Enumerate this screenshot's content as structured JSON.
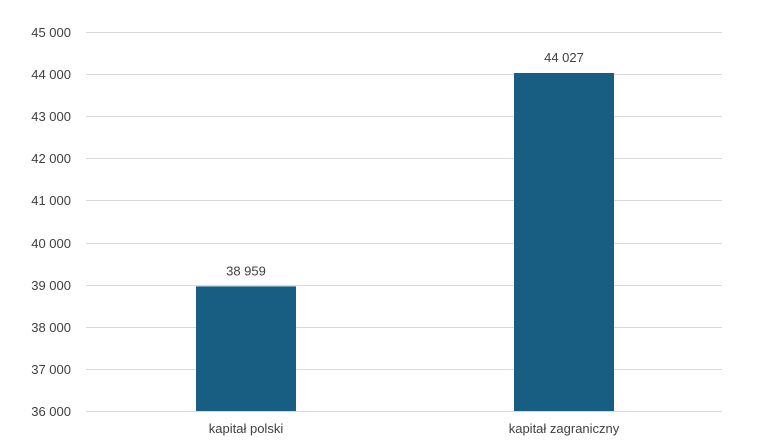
{
  "chart_data": {
    "type": "bar",
    "categories": [
      "kapitał polski",
      "kapitał zagraniczny"
    ],
    "series": [
      {
        "values": [
          38959,
          44027
        ],
        "data_labels": [
          "38 959",
          "44 027"
        ],
        "color": "#175e82"
      }
    ],
    "title": "",
    "xlabel": "",
    "ylabel": "",
    "ylim": [
      36000,
      45000
    ],
    "ytick_step": 1000,
    "yticks": [
      "36 000",
      "37 000",
      "38 000",
      "39 000",
      "40 000",
      "41 000",
      "42 000",
      "43 000",
      "44 000",
      "45 000"
    ],
    "grid": true,
    "legend": "none",
    "gridline_color": "#d9d9d9",
    "text_color": "#404040"
  }
}
